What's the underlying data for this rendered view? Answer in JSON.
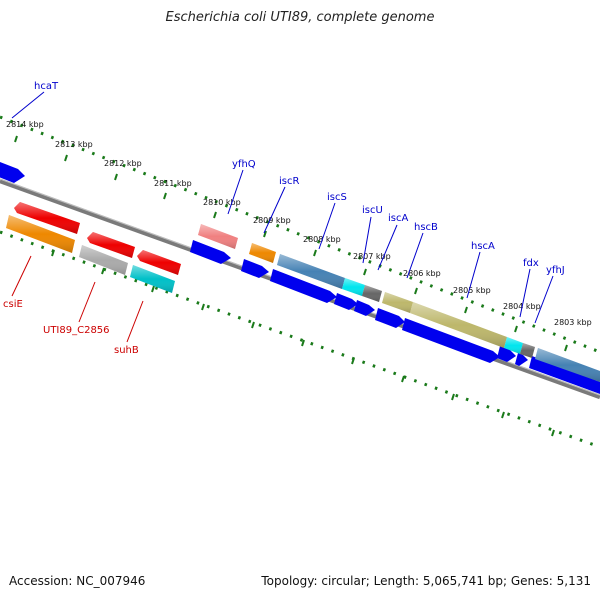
{
  "title": "Escherichia coli UTI89, complete genome",
  "footer": {
    "accession": "Accession: NC_007946",
    "summary": "Topology: circular; Length: 5,065,741 bp; Genes: 5,131"
  },
  "colors": {
    "forward_label": "#0000cc",
    "reverse_label": "#cc0000",
    "backbone": "#888888",
    "ruler": "#1a7a1a"
  },
  "ticks": [
    {
      "label": "2814 kbp"
    },
    {
      "label": "2813 kbp"
    },
    {
      "label": "2812 kbp"
    },
    {
      "label": "2811 kbp"
    },
    {
      "label": "2810 kbp"
    },
    {
      "label": "2809 kbp"
    },
    {
      "label": "2808 kbp"
    },
    {
      "label": "2807 kbp"
    },
    {
      "label": "2806 kbp"
    },
    {
      "label": "2805 kbp"
    },
    {
      "label": "2804 kbp"
    },
    {
      "label": "2803 kbp"
    }
  ],
  "forward_labels": [
    {
      "name": "hcaT"
    },
    {
      "name": "yfhQ"
    },
    {
      "name": "iscR"
    },
    {
      "name": "iscS"
    },
    {
      "name": "iscU"
    },
    {
      "name": "iscA"
    },
    {
      "name": "hscB"
    },
    {
      "name": "hscA"
    },
    {
      "name": "fdx"
    },
    {
      "name": "yfhJ"
    }
  ],
  "reverse_labels": [
    {
      "name": "csiE"
    },
    {
      "name": "UTI89_C2856"
    },
    {
      "name": "suhB"
    }
  ]
}
